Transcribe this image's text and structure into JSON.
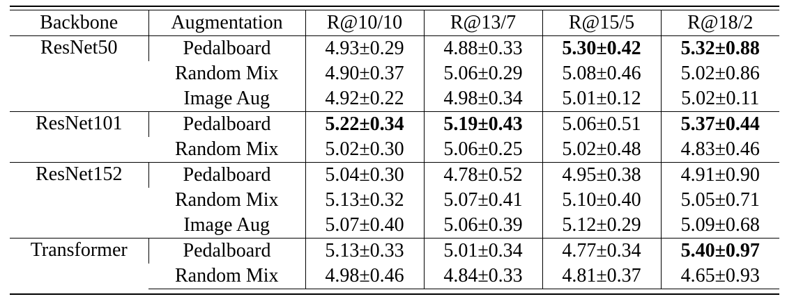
{
  "table": {
    "headers": [
      "Backbone",
      "Augmentation",
      "R@10/10",
      "R@13/7",
      "R@15/5",
      "R@18/2"
    ],
    "groups": [
      {
        "backbone": "ResNet50",
        "rows": [
          {
            "aug": "Pedalboard",
            "cells": [
              {
                "text": "4.93±0.29",
                "bold": false
              },
              {
                "text": "4.88±0.33",
                "bold": false
              },
              {
                "text": "5.30±0.42",
                "bold": true
              },
              {
                "text": "5.32±0.88",
                "bold": true
              }
            ]
          },
          {
            "aug": "Random Mix",
            "cells": [
              {
                "text": "4.90±0.37",
                "bold": false
              },
              {
                "text": "5.06±0.29",
                "bold": false
              },
              {
                "text": "5.08±0.46",
                "bold": false
              },
              {
                "text": "5.02±0.86",
                "bold": false
              }
            ]
          },
          {
            "aug": "Image Aug",
            "cells": [
              {
                "text": "4.92±0.22",
                "bold": false
              },
              {
                "text": "4.98±0.34",
                "bold": false
              },
              {
                "text": "5.01±0.12",
                "bold": false
              },
              {
                "text": "5.02±0.11",
                "bold": false
              }
            ]
          }
        ]
      },
      {
        "backbone": "ResNet101",
        "rows": [
          {
            "aug": "Pedalboard",
            "cells": [
              {
                "text": "5.22±0.34",
                "bold": true
              },
              {
                "text": "5.19±0.43",
                "bold": true
              },
              {
                "text": "5.06±0.51",
                "bold": false
              },
              {
                "text": "5.37±0.44",
                "bold": true
              }
            ]
          },
          {
            "aug": "Random Mix",
            "cells": [
              {
                "text": "5.02±0.30",
                "bold": false
              },
              {
                "text": "5.06±0.25",
                "bold": false
              },
              {
                "text": "5.02±0.48",
                "bold": false
              },
              {
                "text": "4.83±0.46",
                "bold": false
              }
            ]
          }
        ]
      },
      {
        "backbone": "ResNet152",
        "rows": [
          {
            "aug": "Pedalboard",
            "cells": [
              {
                "text": "5.04±0.30",
                "bold": false
              },
              {
                "text": "4.78±0.52",
                "bold": false
              },
              {
                "text": "4.95±0.38",
                "bold": false
              },
              {
                "text": "4.91±0.90",
                "bold": false
              }
            ]
          },
          {
            "aug": "Random Mix",
            "cells": [
              {
                "text": "5.13±0.32",
                "bold": false
              },
              {
                "text": "5.07±0.41",
                "bold": false
              },
              {
                "text": "5.10±0.40",
                "bold": false
              },
              {
                "text": "5.05±0.71",
                "bold": false
              }
            ]
          },
          {
            "aug": "Image Aug",
            "cells": [
              {
                "text": "5.07±0.40",
                "bold": false
              },
              {
                "text": "5.06±0.39",
                "bold": false
              },
              {
                "text": "5.12±0.29",
                "bold": false
              },
              {
                "text": "5.09±0.68",
                "bold": false
              }
            ]
          }
        ]
      },
      {
        "backbone": "Transformer",
        "rows": [
          {
            "aug": "Pedalboard",
            "cells": [
              {
                "text": "5.13±0.33",
                "bold": false
              },
              {
                "text": "5.01±0.34",
                "bold": false
              },
              {
                "text": "4.77±0.34",
                "bold": false
              },
              {
                "text": "5.40±0.97",
                "bold": true
              }
            ]
          },
          {
            "aug": "Random Mix",
            "cells": [
              {
                "text": "4.98±0.46",
                "bold": false
              },
              {
                "text": "4.84±0.33",
                "bold": false
              },
              {
                "text": "4.81±0.37",
                "bold": false
              },
              {
                "text": "4.65±0.93",
                "bold": false
              }
            ]
          }
        ]
      }
    ]
  }
}
